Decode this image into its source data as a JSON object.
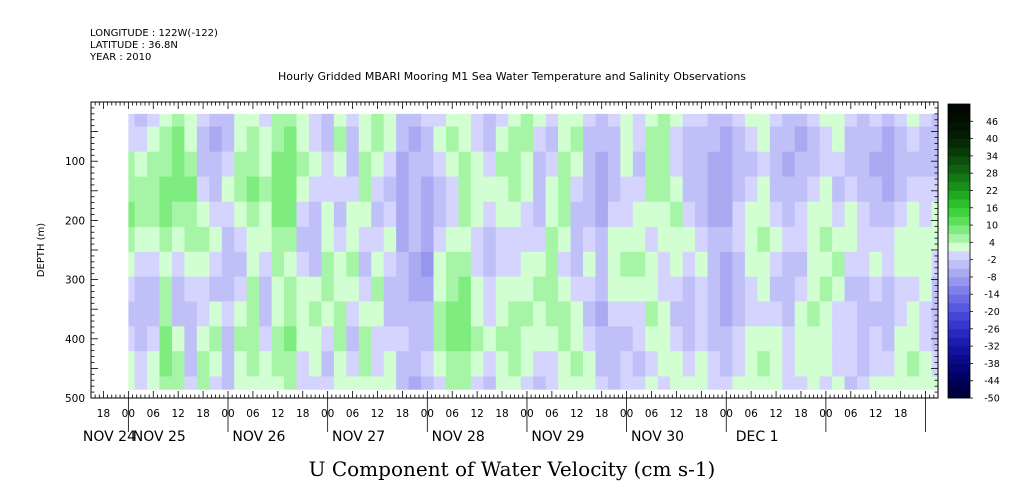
{
  "header": {
    "longitude": "LONGITUDE : 122W(-122)",
    "latitude": "LATITUDE : 36.8N",
    "year": "YEAR : 2010"
  },
  "chart_data": {
    "type": "heatmap",
    "title": "Hourly Gridded MBARI Mooring M1 Sea Water Temperature and Salinity Observations",
    "xlabel": "U Component of Water Velocity (cm s-1)",
    "ylabel": "DEPTH (m)",
    "yticks": [
      100,
      200,
      300,
      400,
      500
    ],
    "ylim": [
      500,
      0
    ],
    "xlim_hours": [
      -9,
      195
    ],
    "x_hour_labels": [
      "18",
      "00",
      "06",
      "12",
      "18",
      "00",
      "06",
      "12",
      "18",
      "00",
      "06",
      "12",
      "18",
      "00",
      "06",
      "12",
      "18",
      "00",
      "06",
      "12",
      "18",
      "00",
      "06",
      "12",
      "18",
      "00",
      "06",
      "12",
      "18",
      "00",
      "06",
      "12",
      "18"
    ],
    "date_labels": [
      {
        "text": "NOV 24",
        "hour": -6
      },
      {
        "text": "NOV 25",
        "hour": 6
      },
      {
        "text": "NOV 26",
        "hour": 30
      },
      {
        "text": "NOV 27",
        "hour": 54
      },
      {
        "text": "NOV 28",
        "hour": 78
      },
      {
        "text": "NOV 29",
        "hour": 102
      },
      {
        "text": "NOV 30",
        "hour": 126
      },
      {
        "text": "DEC  1",
        "hour": 150
      }
    ],
    "colorbar": {
      "labels": [
        "46",
        "40",
        "34",
        "28",
        "22",
        "16",
        "10",
        "4",
        "-2",
        "-8",
        "-14",
        "-20",
        "-26",
        "-32",
        "-38",
        "-44",
        "-50"
      ],
      "min": -50,
      "max": 52,
      "step": 3
    },
    "data_extent": {
      "hour_start": 0,
      "hour_end": 195,
      "depth_top": 20,
      "depth_bottom": 485
    },
    "depth_levels_m": [
      20,
      63,
      105,
      147,
      190,
      232,
      274,
      316,
      358,
      400,
      442,
      485
    ],
    "u_profile_cm_s": [
      {
        "hour": 0,
        "u": [
          -2,
          -1,
          3,
          5,
          6,
          4,
          2,
          -1,
          -3,
          -2,
          1,
          0
        ]
      },
      {
        "hour": 3,
        "u": [
          -3,
          -2,
          1,
          3,
          4,
          2,
          -1,
          -3,
          -4,
          -3,
          -1,
          -2
        ]
      },
      {
        "hour": 6,
        "u": [
          -1,
          2,
          4,
          5,
          3,
          1,
          -2,
          -4,
          -3,
          -1,
          2,
          1
        ]
      },
      {
        "hour": 9,
        "u": [
          1,
          3,
          5,
          7,
          6,
          4,
          2,
          3,
          5,
          7,
          6,
          4
        ]
      },
      {
        "hour": 12,
        "u": [
          3,
          6,
          7,
          6,
          4,
          1,
          -2,
          -4,
          -3,
          2,
          5,
          4
        ]
      },
      {
        "hour": 15,
        "u": [
          2,
          1,
          5,
          6,
          5,
          3,
          0,
          -2,
          -5,
          -4,
          -3,
          -2
        ]
      },
      {
        "hour": 18,
        "u": [
          -2,
          -4,
          -3,
          -1,
          2,
          3,
          1,
          -1,
          -2,
          1,
          4,
          3
        ]
      },
      {
        "hour": 21,
        "u": [
          -4,
          -6,
          -5,
          -3,
          -1,
          0,
          -2,
          -3,
          0,
          3,
          2,
          -1
        ]
      },
      {
        "hour": 24,
        "u": [
          -3,
          -4,
          -2,
          0,
          -2,
          -4,
          -5,
          -3,
          -1,
          -3,
          -5,
          -4
        ]
      },
      {
        "hour": 27,
        "u": [
          0,
          1,
          3,
          4,
          2,
          -1,
          -3,
          -2,
          1,
          3,
          2,
          0
        ]
      },
      {
        "hour": 30,
        "u": [
          2,
          3,
          5,
          6,
          4,
          2,
          1,
          3,
          4,
          5,
          3,
          1
        ]
      },
      {
        "hour": 33,
        "u": [
          -1,
          0,
          2,
          3,
          2,
          1,
          -1,
          -3,
          -4,
          -2,
          1,
          2
        ]
      },
      {
        "hour": 36,
        "u": [
          3,
          5,
          7,
          8,
          7,
          5,
          3,
          1,
          2,
          4,
          3,
          1
        ]
      },
      {
        "hour": 39,
        "u": [
          4,
          6,
          8,
          7,
          6,
          4,
          2,
          3,
          5,
          7,
          5,
          3
        ]
      },
      {
        "hour": 42,
        "u": [
          1,
          2,
          3,
          1,
          -1,
          -3,
          -2,
          0,
          2,
          1,
          -1,
          -2
        ]
      },
      {
        "hour": 45,
        "u": [
          -2,
          -1,
          1,
          -2,
          -4,
          -5,
          -3,
          1,
          3,
          2,
          0,
          -1
        ]
      },
      {
        "hour": 48,
        "u": [
          -3,
          -4,
          -2,
          -1,
          1,
          2,
          3,
          4,
          2,
          -1,
          -3,
          -2
        ]
      },
      {
        "hour": 51,
        "u": [
          2,
          3,
          1,
          -2,
          -3,
          -1,
          1,
          2,
          4,
          3,
          1,
          2
        ]
      },
      {
        "hour": 54,
        "u": [
          -1,
          -3,
          -4,
          -2,
          0,
          2,
          3,
          1,
          -2,
          -3,
          -1,
          1
        ]
      },
      {
        "hour": 57,
        "u": [
          1,
          2,
          4,
          3,
          1,
          -2,
          -3,
          -2,
          1,
          3,
          4,
          2
        ]
      },
      {
        "hour": 60,
        "u": [
          3,
          4,
          2,
          -1,
          -3,
          -2,
          1,
          3,
          2,
          -1,
          -2,
          0
        ]
      },
      {
        "hour": 63,
        "u": [
          2,
          1,
          -1,
          -3,
          -2,
          0,
          -2,
          -4,
          -3,
          -1,
          1,
          2
        ]
      },
      {
        "hour": 66,
        "u": [
          -4,
          -5,
          -6,
          -7,
          -8,
          -6,
          -5,
          -4,
          -3,
          -2,
          -3,
          -4
        ]
      },
      {
        "hour": 69,
        "u": [
          -5,
          -6,
          -5,
          -4,
          -3,
          -4,
          -6,
          -7,
          -5,
          -4,
          -5,
          -6
        ]
      },
      {
        "hour": 72,
        "u": [
          -2,
          -3,
          -4,
          -6,
          -7,
          -8,
          -9,
          -7,
          -5,
          -3,
          -2,
          -3
        ]
      },
      {
        "hour": 75,
        "u": [
          -1,
          0,
          -2,
          -3,
          -4,
          -2,
          0,
          2,
          4,
          3,
          1,
          -1
        ]
      },
      {
        "hour": 78,
        "u": [
          2,
          3,
          1,
          -1,
          -2,
          0,
          3,
          5,
          7,
          6,
          4,
          3
        ]
      },
      {
        "hour": 81,
        "u": [
          1,
          2,
          3,
          5,
          4,
          2,
          4,
          6,
          8,
          7,
          5,
          4
        ]
      },
      {
        "hour": 84,
        "u": [
          -1,
          -2,
          0,
          2,
          1,
          -1,
          -2,
          0,
          2,
          3,
          1,
          -1
        ]
      },
      {
        "hour": 87,
        "u": [
          -3,
          -4,
          -2,
          0,
          -1,
          -3,
          -4,
          -2,
          -1,
          0,
          -2,
          -3
        ]
      },
      {
        "hour": 90,
        "u": [
          -2,
          0,
          3,
          2,
          0,
          -2,
          -1,
          1,
          2,
          3,
          2,
          1
        ]
      },
      {
        "hour": 93,
        "u": [
          1,
          3,
          5,
          4,
          2,
          -1,
          -2,
          1,
          4,
          5,
          4,
          2
        ]
      },
      {
        "hour": 96,
        "u": [
          3,
          4,
          2,
          1,
          -1,
          -2,
          0,
          2,
          3,
          2,
          1,
          -1
        ]
      },
      {
        "hour": 99,
        "u": [
          1,
          -1,
          -3,
          -4,
          -3,
          -1,
          1,
          3,
          2,
          0,
          -2,
          -3
        ]
      },
      {
        "hour": 102,
        "u": [
          -2,
          -3,
          -1,
          1,
          2,
          3,
          4,
          5,
          3,
          1,
          -1,
          -2
        ]
      },
      {
        "hour": 105,
        "u": [
          0,
          1,
          3,
          4,
          3,
          1,
          -1,
          1,
          3,
          4,
          2,
          1
        ]
      },
      {
        "hour": 108,
        "u": [
          2,
          3,
          1,
          -1,
          -3,
          -4,
          -3,
          -1,
          1,
          2,
          3,
          2
        ]
      },
      {
        "hour": 111,
        "u": [
          -1,
          -3,
          -4,
          -5,
          -4,
          -2,
          0,
          -1,
          -3,
          -2,
          0,
          1
        ]
      },
      {
        "hour": 114,
        "u": [
          -3,
          -4,
          -6,
          -7,
          -6,
          -5,
          -4,
          -5,
          -6,
          -5,
          -3,
          -2
        ]
      },
      {
        "hour": 117,
        "u": [
          -2,
          -3,
          -4,
          -3,
          -1,
          1,
          2,
          0,
          -2,
          -3,
          -4,
          -3
        ]
      },
      {
        "hour": 120,
        "u": [
          1,
          2,
          0,
          -2,
          -1,
          1,
          3,
          2,
          -1,
          -3,
          -2,
          -1
        ]
      },
      {
        "hour": 123,
        "u": [
          -1,
          -2,
          -3,
          -2,
          0,
          2,
          3,
          1,
          -1,
          -2,
          -3,
          -2
        ]
      },
      {
        "hour": 126,
        "u": [
          2,
          3,
          4,
          3,
          1,
          -1,
          0,
          2,
          3,
          1,
          -1,
          0
        ]
      },
      {
        "hour": 129,
        "u": [
          3,
          4,
          5,
          4,
          2,
          0,
          -2,
          -1,
          1,
          2,
          1,
          -1
        ]
      },
      {
        "hour": 132,
        "u": [
          0,
          -2,
          -1,
          1,
          3,
          2,
          0,
          -2,
          -3,
          -2,
          0,
          1
        ]
      },
      {
        "hour": 135,
        "u": [
          -2,
          -4,
          -5,
          -3,
          -1,
          0,
          -2,
          -3,
          -4,
          -3,
          -1,
          0
        ]
      },
      {
        "hour": 138,
        "u": [
          -1,
          -3,
          -4,
          -5,
          -3,
          -1,
          1,
          -1,
          -2,
          -1,
          1,
          2
        ]
      },
      {
        "hour": 141,
        "u": [
          -3,
          -5,
          -6,
          -7,
          -6,
          -4,
          -3,
          -4,
          -5,
          -4,
          -2,
          -1
        ]
      },
      {
        "hour": 144,
        "u": [
          -4,
          -6,
          -7,
          -8,
          -7,
          -5,
          -6,
          -7,
          -6,
          -4,
          -3,
          -2
        ]
      },
      {
        "hour": 147,
        "u": [
          -2,
          -4,
          -5,
          -4,
          -2,
          -1,
          -3,
          -4,
          -3,
          -2,
          -1,
          0
        ]
      },
      {
        "hour": 150,
        "u": [
          1,
          -1,
          -3,
          -2,
          0,
          2,
          1,
          -1,
          -2,
          0,
          2,
          1
        ]
      },
      {
        "hour": 153,
        "u": [
          2,
          1,
          -1,
          0,
          2,
          3,
          2,
          0,
          -1,
          1,
          3,
          2
        ]
      },
      {
        "hour": 156,
        "u": [
          -1,
          -3,
          -4,
          -3,
          -1,
          0,
          -2,
          -3,
          -2,
          0,
          1,
          0
        ]
      },
      {
        "hour": 159,
        "u": [
          -3,
          -5,
          -6,
          -5,
          -3,
          -2,
          -4,
          -5,
          -4,
          -2,
          -1,
          -2
        ]
      },
      {
        "hour": 162,
        "u": [
          -4,
          -6,
          -5,
          -3,
          -2,
          -1,
          -3,
          -2,
          0,
          1,
          0,
          -1
        ]
      },
      {
        "hour": 165,
        "u": [
          -2,
          -4,
          -3,
          -1,
          1,
          2,
          0,
          2,
          3,
          2,
          1,
          0
        ]
      },
      {
        "hour": 168,
        "u": [
          0,
          -1,
          -2,
          0,
          2,
          3,
          2,
          3,
          2,
          1,
          0,
          -1
        ]
      },
      {
        "hour": 171,
        "u": [
          1,
          0,
          -2,
          -3,
          -1,
          1,
          3,
          1,
          -1,
          -2,
          -1,
          0
        ]
      },
      {
        "hour": 174,
        "u": [
          -1,
          -3,
          -4,
          -2,
          0,
          1,
          -1,
          -3,
          -2,
          -1,
          -2,
          -3
        ]
      },
      {
        "hour": 177,
        "u": [
          -3,
          -4,
          -5,
          -4,
          -2,
          -1,
          -2,
          -4,
          -5,
          -4,
          -3,
          -2
        ]
      },
      {
        "hour": 180,
        "u": [
          -2,
          -5,
          -6,
          -5,
          -3,
          -1,
          0,
          -2,
          -3,
          -2,
          -1,
          0
        ]
      },
      {
        "hour": 183,
        "u": [
          -4,
          -6,
          -7,
          -6,
          -4,
          -2,
          -1,
          -3,
          -4,
          -3,
          -1,
          1
        ]
      },
      {
        "hour": 186,
        "u": [
          -2,
          -4,
          -5,
          -3,
          -1,
          1,
          0,
          -2,
          -1,
          1,
          2,
          1
        ]
      },
      {
        "hour": 189,
        "u": [
          0,
          -2,
          -3,
          -1,
          1,
          2,
          1,
          -1,
          0,
          2,
          3,
          2
        ]
      },
      {
        "hour": 192,
        "u": [
          -1,
          -3,
          -4,
          -2,
          -1,
          1,
          2,
          0,
          -2,
          -1,
          1,
          0
        ]
      },
      {
        "hour": 195,
        "u": [
          -3,
          -5,
          -4,
          -2,
          0,
          1,
          -1,
          -3,
          -4,
          -3,
          -1,
          0
        ]
      }
    ]
  },
  "colors": {
    "positive_scale": [
      "#d2ffd2",
      "#a6f5a6",
      "#7eec7e",
      "#5ce05c",
      "#3ed43e",
      "#2cc02c",
      "#20a820",
      "#199019",
      "#147814",
      "#106210",
      "#0c4e0c",
      "#083a08",
      "#052a05",
      "#031c03",
      "#021402",
      "#010d01",
      "#000800"
    ],
    "negative_scale": [
      "#d4d4ff",
      "#c0c0f8",
      "#aaaaf2",
      "#9696ee",
      "#8080e8",
      "#6c6ce4",
      "#5858de",
      "#4646d6",
      "#3636cc",
      "#2828c0",
      "#1c1cb0",
      "#12129e",
      "#0a0a8a",
      "#050576",
      "#020262",
      "#00004e",
      "#00003c"
    ]
  }
}
